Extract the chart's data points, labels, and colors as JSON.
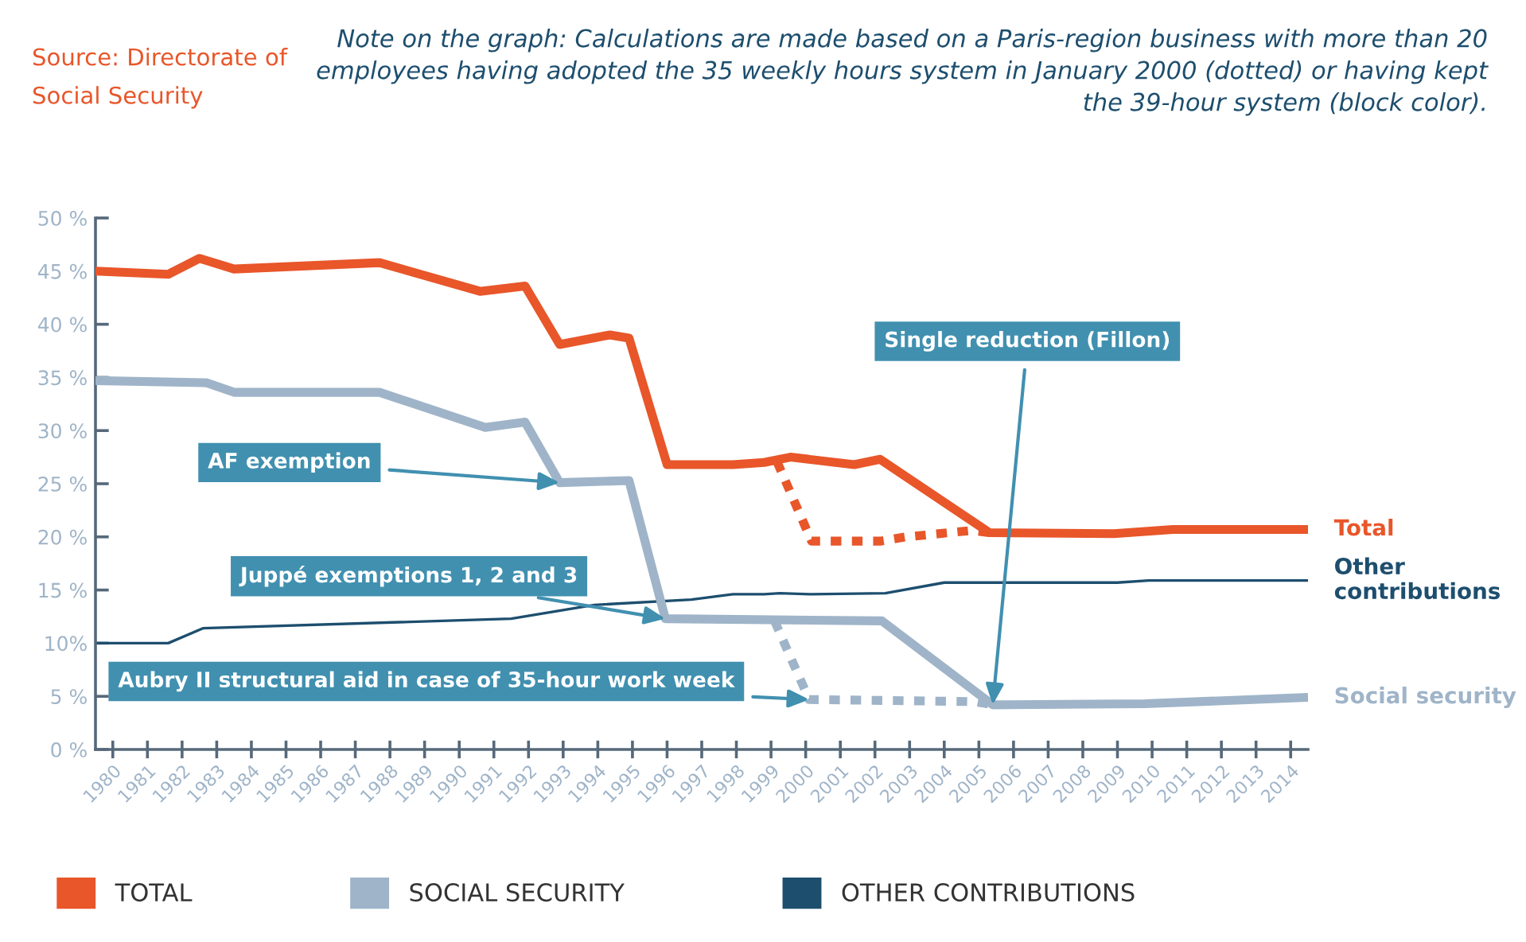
{
  "chart_data": {
    "type": "line",
    "x": [
      1979.5,
      1981.6,
      1982.5,
      1983.5,
      1987.7,
      1990.6,
      1991.9,
      1992.9,
      1994.35,
      1994.9,
      1996.0,
      1997.9,
      1998.8,
      1999.56,
      2001.4,
      2002.15,
      2005.3,
      2008.9,
      2010.6,
      2014.5
    ],
    "series": [
      {
        "name": "TOTAL",
        "color": "#e8562a",
        "line_style": "solid",
        "values": [
          45.0,
          44.7,
          46.2,
          45.2,
          45.8,
          43.1,
          43.6,
          38.1,
          39.0,
          38.7,
          26.8,
          26.8,
          27.0,
          27.5,
          26.8,
          27.3,
          20.4,
          20.3,
          20.7,
          20.7
        ]
      },
      {
        "color": "#e8562a",
        "line_style": "dotted",
        "x": [
          1999.17,
          2000.17,
          2002.15,
          2002.9,
          2004.8,
          2005.3
        ],
        "values": [
          27.1,
          19.6,
          19.6,
          20.0,
          20.6,
          20.4
        ]
      },
      {
        "name": "SOCIAL SECURITY",
        "color": "#9fb4c8",
        "line_style": "solid",
        "x": [
          1979.5,
          1982.7,
          1983.5,
          1987.7,
          1990.75,
          1991.9,
          1992.9,
          1994.9,
          1995.95,
          2002.2,
          2005.4,
          2009.8,
          2014.5
        ],
        "values": [
          34.7,
          34.5,
          33.6,
          33.6,
          30.3,
          30.8,
          25.1,
          25.3,
          12.3,
          12.1,
          4.2,
          4.3,
          4.9
        ]
      },
      {
        "color": "#9fb4c8",
        "line_style": "dotted",
        "x": [
          1999.1,
          2000.1,
          2004.9,
          2005.4
        ],
        "values": [
          12.1,
          4.7,
          4.5,
          4.2
        ]
      },
      {
        "name": "OTHER CONTRIBUTIONS",
        "color": "#1d4e6e",
        "line_style": "solid",
        "x": [
          1979.5,
          1981.6,
          1982.6,
          1991.5,
          1993.9,
          1996.7,
          1997.9,
          1998.8,
          1999.25,
          2000.17,
          2002.3,
          2004.0,
          2009.0,
          2009.9,
          2014.5
        ],
        "values": [
          10.0,
          10.0,
          11.4,
          12.3,
          13.6,
          14.1,
          14.6,
          14.6,
          14.7,
          14.6,
          14.7,
          15.7,
          15.7,
          15.9,
          15.9
        ]
      }
    ],
    "xlim": [
      1979.5,
      2014.5
    ],
    "xticks": [
      1980,
      1981,
      1982,
      1983,
      1984,
      1985,
      1986,
      1987,
      1988,
      1989,
      1990,
      1991,
      1992,
      1993,
      1994,
      1995,
      1996,
      1997,
      1998,
      1999,
      2000,
      2001,
      2002,
      2003,
      2004,
      2005,
      2006,
      2007,
      2008,
      2009,
      2010,
      2011,
      2012,
      2013,
      2014
    ],
    "ylim": [
      0,
      50
    ],
    "yticks": [
      {
        "value": 0,
        "label": "0 %"
      },
      {
        "value": 5,
        "label": "5 %"
      },
      {
        "value": 10,
        "label": "10%"
      },
      {
        "value": 15,
        "label": "15 %"
      },
      {
        "value": 20,
        "label": "20 %"
      },
      {
        "value": 25,
        "label": "25 %"
      },
      {
        "value": 30,
        "label": "30 %"
      },
      {
        "value": 35,
        "label": "35 %"
      },
      {
        "value": 40,
        "label": "40 %"
      },
      {
        "value": 45,
        "label": "45 %"
      },
      {
        "value": 50,
        "label": "50 %"
      }
    ],
    "grid": false,
    "legend": "bottom",
    "marker": "none",
    "annotations": [
      "Source: Directorate of Social Security",
      "Note on the graph: Calculations are made based on a Paris-region business with more than 20 employees having adopted the 35 weekly hours system in January 2000 (dotted) or having kept the 39-hour system (block color).",
      {
        "text": "AF exemption",
        "x": 1992.9,
        "y": 25.1
      },
      {
        "text": "Juppé exemptions 1, 2 and 3",
        "x": 1995.95,
        "y": 12.3
      },
      {
        "text": "Aubry II structural aid in case of 35-hour work week",
        "x": 2000.1,
        "y": 4.7
      },
      {
        "text": "Single reduction (Fillon)",
        "x": 2005.4,
        "y": 4.2
      },
      {
        "text": "Total",
        "x": 2014.5,
        "y": 20.7
      },
      {
        "text": "Other contributions",
        "x": 2014.5,
        "y": 15.9
      },
      {
        "text": "Social security",
        "x": 2014.5,
        "y": 4.9
      }
    ]
  }
}
